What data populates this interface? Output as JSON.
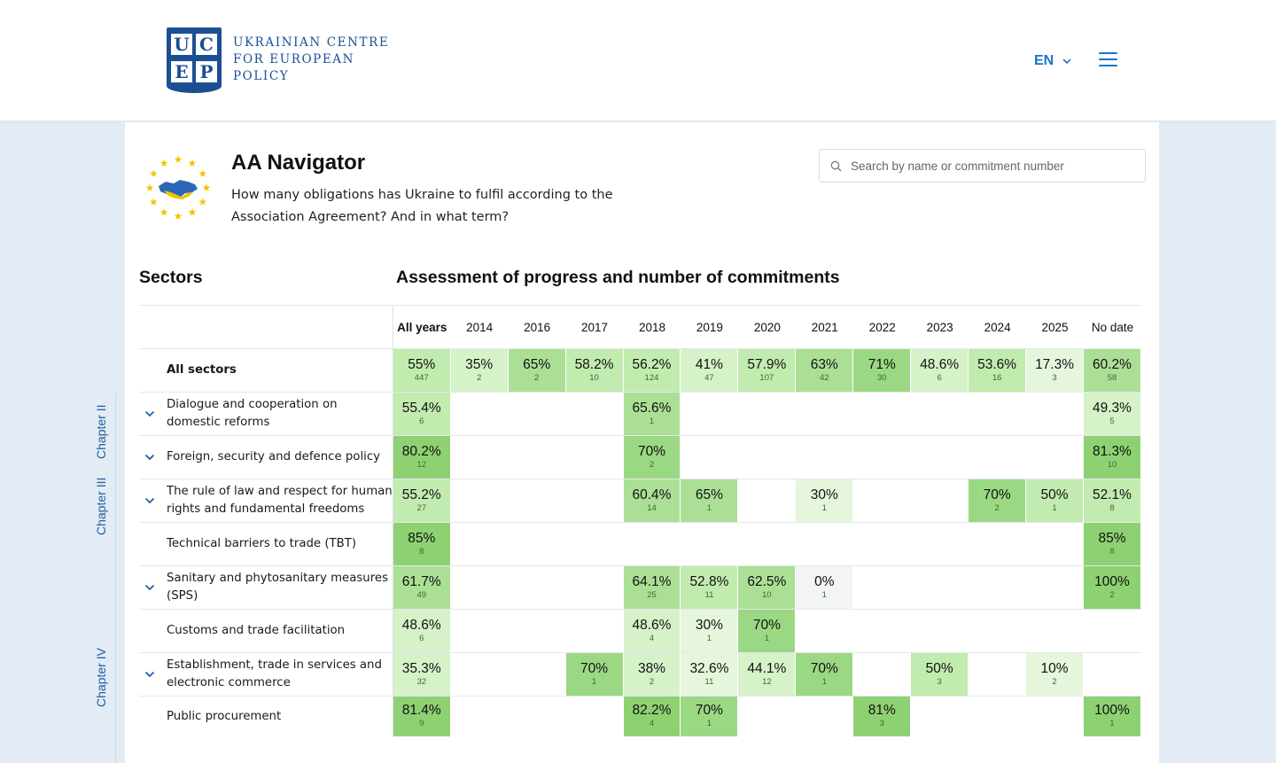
{
  "header": {
    "logo_letters": [
      "U",
      "C",
      "E",
      "P"
    ],
    "logo_lines": [
      "UKRAINIAN CENTRE",
      "FOR EUROPEAN",
      "POLICY"
    ],
    "language": "EN"
  },
  "chapters": [
    "Chapter II",
    "Chapter III",
    "Chapter IV"
  ],
  "page": {
    "title": "AA Navigator",
    "subtitle": "How many obligations has Ukraine to fulfil according to the Association Agreement? And in what term?",
    "search_placeholder": "Search by name or commitment number",
    "sectors_heading": "Sectors",
    "assessment_heading": "Assessment of progress and number of commitments"
  },
  "table": {
    "columns": [
      "All years",
      "2014",
      "2016",
      "2017",
      "2018",
      "2019",
      "2020",
      "2021",
      "2022",
      "2023",
      "2024",
      "2025",
      "No date"
    ],
    "rows": [
      {
        "name": "All sectors",
        "expandable": false,
        "bold": true,
        "cells": [
          [
            "55%",
            "447"
          ],
          [
            "35%",
            "2"
          ],
          [
            "65%",
            "2"
          ],
          [
            "58.2%",
            "10"
          ],
          [
            "56.2%",
            "124"
          ],
          [
            "41%",
            "47"
          ],
          [
            "57.9%",
            "107"
          ],
          [
            "63%",
            "42"
          ],
          [
            "71%",
            "30"
          ],
          [
            "48.6%",
            "6"
          ],
          [
            "53.6%",
            "16"
          ],
          [
            "17.3%",
            "3"
          ],
          [
            "60.2%",
            "58"
          ]
        ]
      },
      {
        "name": "Dialogue and cooperation on domestic reforms",
        "expandable": true,
        "bold": false,
        "cells": [
          [
            "55.4%",
            "6"
          ],
          null,
          null,
          null,
          [
            "65.6%",
            "1"
          ],
          null,
          null,
          null,
          null,
          null,
          null,
          null,
          [
            "49.3%",
            "5"
          ]
        ]
      },
      {
        "name": "Foreign, security and defence policy",
        "expandable": true,
        "bold": false,
        "cells": [
          [
            "80.2%",
            "12"
          ],
          null,
          null,
          null,
          [
            "70%",
            "2"
          ],
          null,
          null,
          null,
          null,
          null,
          null,
          null,
          [
            "81.3%",
            "10"
          ]
        ]
      },
      {
        "name": "The rule of law and respect for human rights and fundamental freedoms",
        "expandable": true,
        "bold": false,
        "cells": [
          [
            "55.2%",
            "27"
          ],
          null,
          null,
          null,
          [
            "60.4%",
            "14"
          ],
          [
            "65%",
            "1"
          ],
          null,
          [
            "30%",
            "1"
          ],
          null,
          null,
          [
            "70%",
            "2"
          ],
          [
            "50%",
            "1"
          ],
          [
            "52.1%",
            "8"
          ]
        ]
      },
      {
        "name": "Technical barriers to trade (TBT)",
        "expandable": false,
        "bold": false,
        "cells": [
          [
            "85%",
            "8"
          ],
          null,
          null,
          null,
          null,
          null,
          null,
          null,
          null,
          null,
          null,
          null,
          [
            "85%",
            "8"
          ]
        ]
      },
      {
        "name": "Sanitary and phytosanitary measures (SPS)",
        "expandable": true,
        "bold": false,
        "cells": [
          [
            "61.7%",
            "49"
          ],
          null,
          null,
          null,
          [
            "64.1%",
            "25"
          ],
          [
            "52.8%",
            "11"
          ],
          [
            "62.5%",
            "10"
          ],
          [
            "0%",
            "1"
          ],
          null,
          null,
          null,
          null,
          [
            "100%",
            "2"
          ]
        ]
      },
      {
        "name": "Customs and trade facilitation",
        "expandable": false,
        "bold": false,
        "cells": [
          [
            "48.6%",
            "6"
          ],
          null,
          null,
          null,
          [
            "48.6%",
            "4"
          ],
          [
            "30%",
            "1"
          ],
          [
            "70%",
            "1"
          ],
          null,
          null,
          null,
          null,
          null,
          null
        ]
      },
      {
        "name": "Establishment, trade in services and electronic commerce",
        "expandable": true,
        "bold": false,
        "cells": [
          [
            "35.3%",
            "32"
          ],
          null,
          null,
          [
            "70%",
            "1"
          ],
          [
            "38%",
            "2"
          ],
          [
            "32.6%",
            "11"
          ],
          [
            "44.1%",
            "12"
          ],
          [
            "70%",
            "1"
          ],
          null,
          [
            "50%",
            "3"
          ],
          null,
          [
            "10%",
            "2"
          ],
          null
        ]
      },
      {
        "name": "Public procurement",
        "expandable": false,
        "bold": false,
        "cells": [
          [
            "81.4%",
            "9"
          ],
          null,
          null,
          null,
          [
            "82.2%",
            "4"
          ],
          [
            "70%",
            "1"
          ],
          null,
          null,
          [
            "81%",
            "3"
          ],
          null,
          null,
          null,
          [
            "100%",
            "1"
          ]
        ]
      }
    ]
  }
}
